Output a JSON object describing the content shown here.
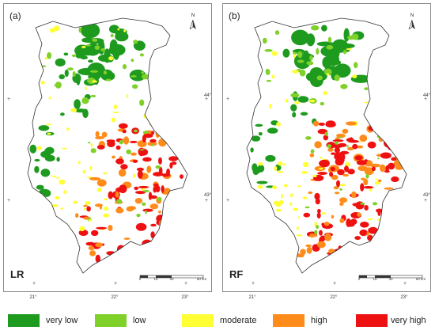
{
  "panels": [
    {
      "id": "a",
      "panel_label": "(a)",
      "model": "LR"
    },
    {
      "id": "b",
      "panel_label": "(b)",
      "model": "RF"
    }
  ],
  "north_label": "N",
  "scale_labels": [
    "0",
    "15",
    "30",
    "60 km"
  ],
  "lat_labels": [
    "44°",
    "43°"
  ],
  "lon_labels": [
    "21°",
    "22°",
    "23°"
  ],
  "legend": [
    {
      "label": "very low",
      "color": "#1e9a1e"
    },
    {
      "label": "low",
      "color": "#7fd12a"
    },
    {
      "label": "moderate",
      "color": "#ffff33"
    },
    {
      "label": "high",
      "color": "#ff8c1a"
    },
    {
      "label": "very high",
      "color": "#ee1111"
    }
  ]
}
